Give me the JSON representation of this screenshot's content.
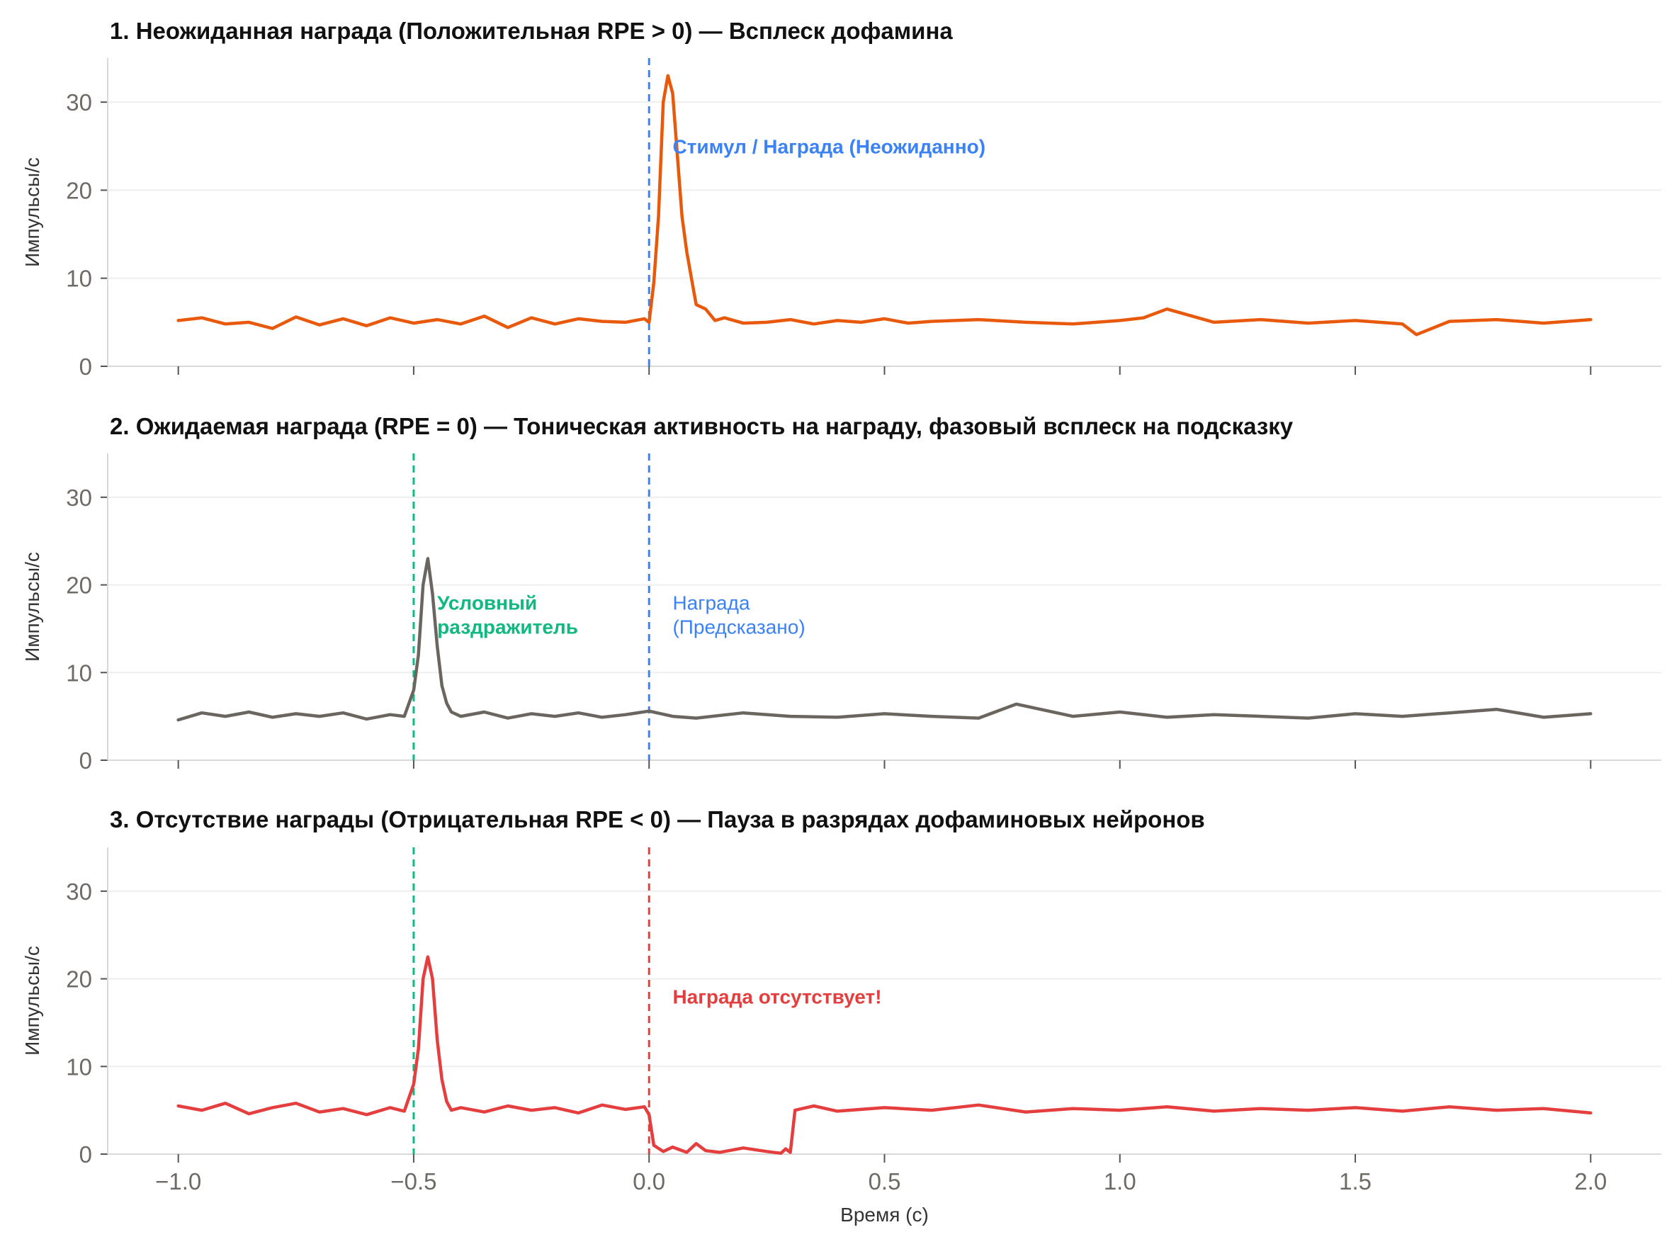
{
  "chart_data": [
    {
      "type": "line",
      "title": "1. Неожиданная награда (Положительная RPE > 0) — Всплеск дофамина",
      "ylabel": "Импульсы/с",
      "xlabel": "",
      "xlim": [
        -1.15,
        2.15
      ],
      "ylim": [
        0,
        35
      ],
      "yticks": [
        0,
        10,
        20,
        30
      ],
      "xticks": [
        -1.0,
        -0.5,
        0.0,
        0.5,
        1.0,
        1.5,
        2.0
      ],
      "show_xtick_labels": false,
      "grid": "y",
      "color": "#e8590c",
      "series": [
        {
          "x": [
            -1.0,
            -0.95,
            -0.9,
            -0.85,
            -0.8,
            -0.75,
            -0.7,
            -0.65,
            -0.6,
            -0.55,
            -0.5,
            -0.45,
            -0.4,
            -0.35,
            -0.3,
            -0.25,
            -0.2,
            -0.15,
            -0.1,
            -0.05,
            -0.01,
            0.0,
            0.01,
            0.02,
            0.03,
            0.04,
            0.05,
            0.06,
            0.07,
            0.08,
            0.09,
            0.1,
            0.12,
            0.14,
            0.16,
            0.2,
            0.25,
            0.3,
            0.35,
            0.4,
            0.45,
            0.5,
            0.55,
            0.6,
            0.7,
            0.8,
            0.9,
            1.0,
            1.05,
            1.1,
            1.2,
            1.3,
            1.4,
            1.5,
            1.6,
            1.63,
            1.7,
            1.8,
            1.9,
            2.0
          ],
          "y": [
            5.2,
            5.5,
            4.8,
            5.0,
            4.3,
            5.6,
            4.7,
            5.4,
            4.6,
            5.5,
            4.9,
            5.3,
            4.8,
            5.7,
            4.4,
            5.5,
            4.8,
            5.4,
            5.1,
            5.0,
            5.4,
            5.0,
            9.5,
            17.0,
            30.0,
            33.0,
            31.0,
            24.0,
            17.0,
            13.0,
            10.0,
            7.0,
            6.5,
            5.2,
            5.5,
            4.9,
            5.0,
            5.3,
            4.8,
            5.2,
            5.0,
            5.4,
            4.9,
            5.1,
            5.3,
            5.0,
            4.8,
            5.2,
            5.5,
            6.5,
            5.0,
            5.3,
            4.9,
            5.2,
            4.8,
            3.6,
            5.1,
            5.3,
            4.9,
            5.3
          ]
        }
      ],
      "vlines": [
        {
          "x": 0.0,
          "color": "#3b82f6"
        }
      ],
      "annotations": [
        {
          "x": 0.05,
          "y": 25,
          "text": "Стимул / Награда (Неожиданно)",
          "color": "#3b82f6",
          "bold": true
        }
      ]
    },
    {
      "type": "line",
      "title": "2. Ожидаемая награда (RPE = 0) — Тоническая активность на награду, фазовый всплеск на подсказку",
      "ylabel": "Импульсы/с",
      "xlabel": "",
      "xlim": [
        -1.15,
        2.15
      ],
      "ylim": [
        0,
        35
      ],
      "yticks": [
        0,
        10,
        20,
        30
      ],
      "xticks": [
        -1.0,
        -0.5,
        0.0,
        0.5,
        1.0,
        1.5,
        2.0
      ],
      "show_xtick_labels": false,
      "grid": "y",
      "color": "#6b6560",
      "series": [
        {
          "x": [
            -1.0,
            -0.95,
            -0.9,
            -0.85,
            -0.8,
            -0.75,
            -0.7,
            -0.65,
            -0.6,
            -0.55,
            -0.52,
            -0.5,
            -0.49,
            -0.48,
            -0.47,
            -0.46,
            -0.45,
            -0.44,
            -0.43,
            -0.42,
            -0.4,
            -0.35,
            -0.3,
            -0.25,
            -0.2,
            -0.15,
            -0.1,
            -0.05,
            0.0,
            0.05,
            0.1,
            0.2,
            0.3,
            0.4,
            0.5,
            0.6,
            0.7,
            0.78,
            0.9,
            1.0,
            1.1,
            1.2,
            1.3,
            1.4,
            1.5,
            1.6,
            1.7,
            1.8,
            1.9,
            2.0
          ],
          "y": [
            4.6,
            5.4,
            5.0,
            5.5,
            4.9,
            5.3,
            5.0,
            5.4,
            4.7,
            5.2,
            5.0,
            8.0,
            12.0,
            20.0,
            23.0,
            19.0,
            13.0,
            8.5,
            6.5,
            5.5,
            5.0,
            5.5,
            4.8,
            5.3,
            5.0,
            5.4,
            4.9,
            5.2,
            5.6,
            5.0,
            4.8,
            5.4,
            5.0,
            4.9,
            5.3,
            5.0,
            4.8,
            6.4,
            5.0,
            5.5,
            4.9,
            5.2,
            5.0,
            4.8,
            5.3,
            5.0,
            5.4,
            5.8,
            4.9,
            5.3
          ]
        }
      ],
      "vlines": [
        {
          "x": -0.5,
          "color": "#10b981"
        },
        {
          "x": 0.0,
          "color": "#3b82f6"
        }
      ],
      "annotations": [
        {
          "x": -0.45,
          "y": 18,
          "text": "Условный",
          "text2": "раздражитель",
          "color": "#10b981",
          "bold": true
        },
        {
          "x": 0.05,
          "y": 18,
          "text": "Награда",
          "text2": "(Предсказано)",
          "color": "#3b82f6",
          "bold": false
        }
      ]
    },
    {
      "type": "line",
      "title": "3. Отсутствие награды (Отрицательная RPE < 0) — Пауза в разрядах дофаминовых нейронов",
      "ylabel": "Импульсы/с",
      "xlabel": "Время (с)",
      "xlim": [
        -1.15,
        2.15
      ],
      "ylim": [
        0,
        35
      ],
      "yticks": [
        0,
        10,
        20,
        30
      ],
      "xticks": [
        -1.0,
        -0.5,
        0.0,
        0.5,
        1.0,
        1.5,
        2.0
      ],
      "xtick_labels": [
        "−1.0",
        "−0.5",
        "0.0",
        "0.5",
        "1.0",
        "1.5",
        "2.0"
      ],
      "show_xtick_labels": true,
      "grid": "y",
      "color": "#e53e3e",
      "series": [
        {
          "x": [
            -1.0,
            -0.95,
            -0.9,
            -0.85,
            -0.8,
            -0.75,
            -0.7,
            -0.65,
            -0.6,
            -0.55,
            -0.52,
            -0.5,
            -0.49,
            -0.48,
            -0.47,
            -0.46,
            -0.45,
            -0.44,
            -0.43,
            -0.42,
            -0.4,
            -0.35,
            -0.3,
            -0.25,
            -0.2,
            -0.15,
            -0.1,
            -0.05,
            -0.01,
            0.0,
            0.01,
            0.03,
            0.05,
            0.08,
            0.1,
            0.12,
            0.15,
            0.2,
            0.25,
            0.28,
            0.29,
            0.3,
            0.31,
            0.35,
            0.4,
            0.5,
            0.6,
            0.7,
            0.8,
            0.9,
            1.0,
            1.1,
            1.2,
            1.3,
            1.4,
            1.5,
            1.6,
            1.7,
            1.8,
            1.9,
            2.0
          ],
          "y": [
            5.5,
            5.0,
            5.8,
            4.6,
            5.3,
            5.8,
            4.8,
            5.2,
            4.5,
            5.3,
            4.9,
            8.0,
            12.0,
            20.0,
            22.5,
            20.0,
            13.0,
            8.5,
            6.0,
            5.0,
            5.3,
            4.8,
            5.5,
            5.0,
            5.3,
            4.7,
            5.6,
            5.1,
            5.4,
            4.5,
            1.0,
            0.3,
            0.8,
            0.2,
            1.2,
            0.4,
            0.2,
            0.7,
            0.3,
            0.1,
            0.6,
            0.2,
            5.0,
            5.5,
            4.9,
            5.3,
            5.0,
            5.6,
            4.8,
            5.2,
            5.0,
            5.4,
            4.9,
            5.2,
            5.0,
            5.3,
            4.9,
            5.4,
            5.0,
            5.2,
            4.7
          ]
        }
      ],
      "vlines": [
        {
          "x": -0.5,
          "color": "#10b981"
        },
        {
          "x": 0.0,
          "color": "#e53e3e"
        }
      ],
      "annotations": [
        {
          "x": 0.05,
          "y": 18,
          "text": "Награда отсутствует!",
          "color": "#e53e3e",
          "bold": true
        }
      ]
    }
  ]
}
